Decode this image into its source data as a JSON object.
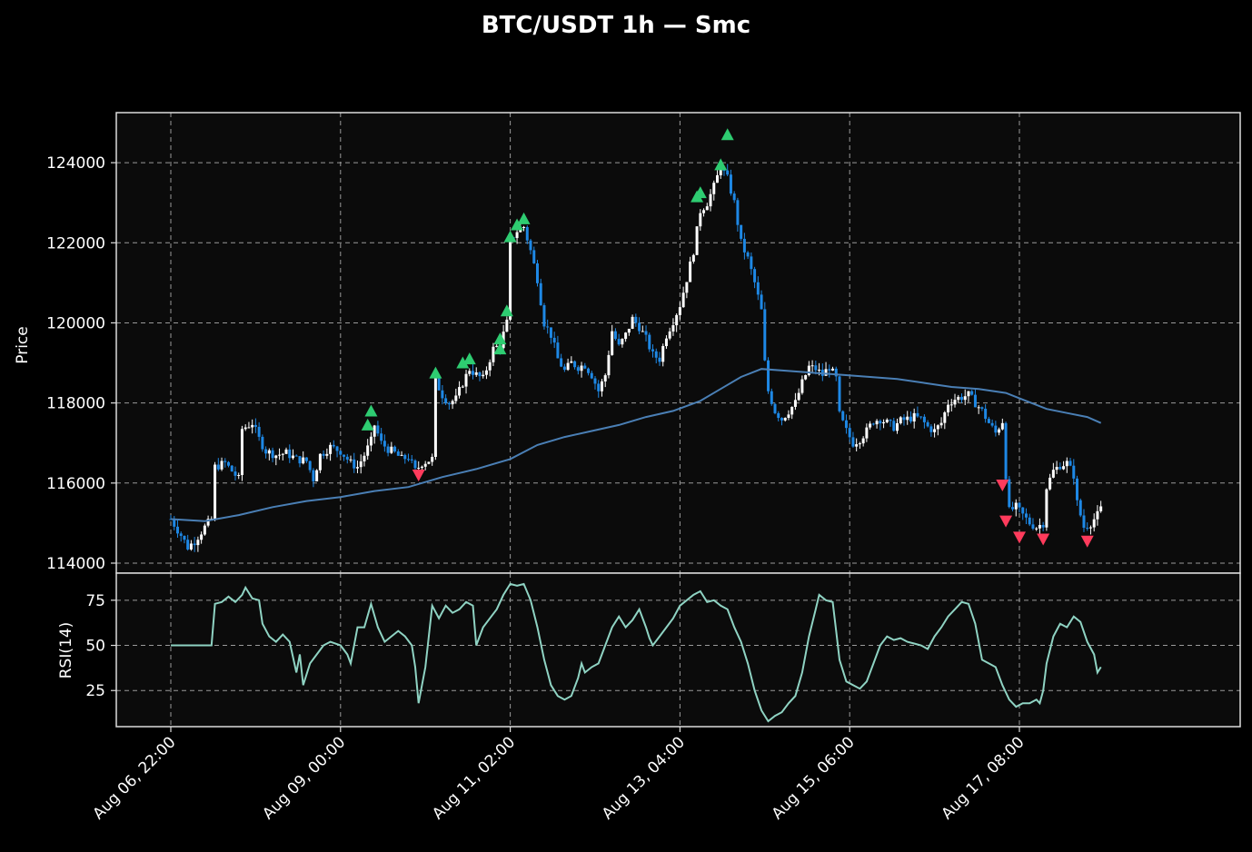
{
  "title": "BTC/USDT 1h — Smc",
  "colors": {
    "background": "#000000",
    "panel": "#0b0b0b",
    "frame": "#dddddd",
    "grid": "#9a9a9a",
    "text": "#ffffff",
    "candle_up": "#ffffff",
    "candle_down": "#1e88e5",
    "ma_line": "#4a7fb5",
    "rsi_line": "#8fd3c3",
    "buy_marker": "#2ecc71",
    "sell_marker": "#ff3b5c"
  },
  "chart_data": [
    {
      "type": "candlestick",
      "ylabel": "Price",
      "ylim": [
        113750,
        125250
      ],
      "yticks": [
        114000,
        116000,
        118000,
        120000,
        122000,
        124000
      ],
      "x_range_hours": [
        -1,
        265
      ],
      "xticks": [
        {
          "label": "Aug 06, 22:00",
          "hour": 0
        },
        {
          "label": "Aug 09, 00:00",
          "hour": 50
        },
        {
          "label": "Aug 11, 02:00",
          "hour": 100
        },
        {
          "label": "Aug 13, 04:00",
          "hour": 150
        },
        {
          "label": "Aug 15, 06:00",
          "hour": 200
        },
        {
          "label": "Aug 17, 08:00",
          "hour": 250
        }
      ],
      "grid": true,
      "close_anchors": [
        [
          0,
          115100
        ],
        [
          3,
          114700
        ],
        [
          5,
          114400
        ],
        [
          7,
          114550
        ],
        [
          10,
          114900
        ],
        [
          12,
          115100
        ],
        [
          13,
          116400
        ],
        [
          16,
          116500
        ],
        [
          18,
          116300
        ],
        [
          20,
          116100
        ],
        [
          21,
          117350
        ],
        [
          24,
          117500
        ],
        [
          26,
          117100
        ],
        [
          28,
          116800
        ],
        [
          31,
          116700
        ],
        [
          34,
          116750
        ],
        [
          37,
          116600
        ],
        [
          40,
          116550
        ],
        [
          42,
          116100
        ],
        [
          44,
          116700
        ],
        [
          47,
          116900
        ],
        [
          50,
          116800
        ],
        [
          53,
          116500
        ],
        [
          55,
          116400
        ],
        [
          57,
          116700
        ],
        [
          59,
          117050
        ],
        [
          60,
          117450
        ],
        [
          62,
          117000
        ],
        [
          64,
          116850
        ],
        [
          66,
          116750
        ],
        [
          68,
          116600
        ],
        [
          70,
          116650
        ],
        [
          72,
          116300
        ],
        [
          74,
          116500
        ],
        [
          77,
          116600
        ],
        [
          78,
          118550
        ],
        [
          80,
          118200
        ],
        [
          82,
          118000
        ],
        [
          84,
          118100
        ],
        [
          86,
          118500
        ],
        [
          88,
          118850
        ],
        [
          90,
          118700
        ],
        [
          92,
          118600
        ],
        [
          95,
          119350
        ],
        [
          97,
          119450
        ],
        [
          99,
          120000
        ],
        [
          100,
          122050
        ],
        [
          102,
          122300
        ],
        [
          104,
          122400
        ],
        [
          106,
          121800
        ],
        [
          108,
          121100
        ],
        [
          110,
          120000
        ],
        [
          112,
          119700
        ],
        [
          114,
          119100
        ],
        [
          116,
          118800
        ],
        [
          118,
          119000
        ],
        [
          120,
          118900
        ],
        [
          122,
          118950
        ],
        [
          124,
          118700
        ],
        [
          126,
          118300
        ],
        [
          128,
          118700
        ],
        [
          130,
          119800
        ],
        [
          132,
          119400
        ],
        [
          134,
          119700
        ],
        [
          136,
          120100
        ],
        [
          138,
          119900
        ],
        [
          140,
          119600
        ],
        [
          142,
          119200
        ],
        [
          144,
          119100
        ],
        [
          146,
          119700
        ],
        [
          148,
          120050
        ],
        [
          150,
          120450
        ],
        [
          152,
          121100
        ],
        [
          154,
          121800
        ],
        [
          156,
          122800
        ],
        [
          158,
          123000
        ],
        [
          160,
          123400
        ],
        [
          162,
          123900
        ],
        [
          164,
          123600
        ],
        [
          166,
          123000
        ],
        [
          168,
          122000
        ],
        [
          170,
          121600
        ],
        [
          172,
          121000
        ],
        [
          174,
          120300
        ],
        [
          175,
          119000
        ],
        [
          176,
          118300
        ],
        [
          178,
          117800
        ],
        [
          180,
          117600
        ],
        [
          182,
          117800
        ],
        [
          184,
          118000
        ],
        [
          186,
          118500
        ],
        [
          188,
          118900
        ],
        [
          190,
          118850
        ],
        [
          192,
          118700
        ],
        [
          194,
          118900
        ],
        [
          196,
          118600
        ],
        [
          197,
          117700
        ],
        [
          199,
          117300
        ],
        [
          201,
          117000
        ],
        [
          203,
          117100
        ],
        [
          205,
          117300
        ],
        [
          207,
          117550
        ],
        [
          209,
          117600
        ],
        [
          211,
          117500
        ],
        [
          213,
          117400
        ],
        [
          215,
          117550
        ],
        [
          217,
          117600
        ],
        [
          219,
          117650
        ],
        [
          221,
          117600
        ],
        [
          223,
          117400
        ],
        [
          225,
          117300
        ],
        [
          227,
          117500
        ],
        [
          229,
          118000
        ],
        [
          231,
          118100
        ],
        [
          233,
          118150
        ],
        [
          235,
          118200
        ],
        [
          237,
          118000
        ],
        [
          239,
          117800
        ],
        [
          241,
          117500
        ],
        [
          243,
          117250
        ],
        [
          245,
          117550
        ],
        [
          246,
          116200
        ],
        [
          247,
          115300
        ],
        [
          249,
          115400
        ],
        [
          251,
          115200
        ],
        [
          253,
          115000
        ],
        [
          255,
          114900
        ],
        [
          257,
          115000
        ],
        [
          258,
          115900
        ],
        [
          260,
          116300
        ],
        [
          262,
          116450
        ],
        [
          264,
          116500
        ],
        [
          266,
          116200
        ],
        [
          267,
          115500
        ],
        [
          269,
          114900
        ],
        [
          271,
          115000
        ],
        [
          273,
          115200
        ],
        [
          274,
          115350
        ]
      ],
      "ma_line": [
        [
          0,
          115100
        ],
        [
          10,
          115050
        ],
        [
          20,
          115200
        ],
        [
          30,
          115400
        ],
        [
          40,
          115550
        ],
        [
          50,
          115650
        ],
        [
          60,
          115800
        ],
        [
          70,
          115900
        ],
        [
          80,
          116150
        ],
        [
          90,
          116350
        ],
        [
          100,
          116600
        ],
        [
          108,
          116950
        ],
        [
          116,
          117150
        ],
        [
          124,
          117300
        ],
        [
          132,
          117450
        ],
        [
          140,
          117650
        ],
        [
          148,
          117800
        ],
        [
          156,
          118050
        ],
        [
          162,
          118350
        ],
        [
          168,
          118650
        ],
        [
          174,
          118850
        ],
        [
          182,
          118800
        ],
        [
          190,
          118750
        ],
        [
          198,
          118700
        ],
        [
          206,
          118650
        ],
        [
          214,
          118600
        ],
        [
          222,
          118500
        ],
        [
          230,
          118400
        ],
        [
          238,
          118350
        ],
        [
          246,
          118250
        ],
        [
          252,
          118050
        ],
        [
          258,
          117850
        ],
        [
          264,
          117750
        ],
        [
          270,
          117650
        ],
        [
          274,
          117500
        ]
      ],
      "buy_signals": [
        [
          58,
          117450
        ],
        [
          59,
          117800
        ],
        [
          78,
          118750
        ],
        [
          86,
          119000
        ],
        [
          88,
          119100
        ],
        [
          97,
          119350
        ],
        [
          97,
          119600
        ],
        [
          99,
          120300
        ],
        [
          100,
          122150
        ],
        [
          102,
          122450
        ],
        [
          104,
          122600
        ],
        [
          155,
          123150
        ],
        [
          156,
          123250
        ],
        [
          162,
          123950
        ],
        [
          164,
          124700
        ]
      ],
      "sell_signals": [
        [
          73,
          116200
        ],
        [
          245,
          115950
        ],
        [
          246,
          115050
        ],
        [
          250,
          114650
        ],
        [
          257,
          114600
        ],
        [
          270,
          114550
        ]
      ]
    },
    {
      "type": "line",
      "ylabel": "RSI(14)",
      "ylim": [
        5,
        90
      ],
      "yticks": [
        25,
        50,
        75
      ],
      "grid": true,
      "anchors": [
        [
          0,
          50
        ],
        [
          12,
          50
        ],
        [
          13,
          73
        ],
        [
          15,
          74
        ],
        [
          17,
          77
        ],
        [
          19,
          74
        ],
        [
          21,
          78
        ],
        [
          22,
          82
        ],
        [
          24,
          76
        ],
        [
          26,
          75
        ],
        [
          27,
          62
        ],
        [
          29,
          55
        ],
        [
          31,
          52
        ],
        [
          33,
          56
        ],
        [
          35,
          52
        ],
        [
          37,
          35
        ],
        [
          38,
          45
        ],
        [
          39,
          28
        ],
        [
          41,
          40
        ],
        [
          43,
          45
        ],
        [
          45,
          50
        ],
        [
          47,
          52
        ],
        [
          50,
          50
        ],
        [
          52,
          45
        ],
        [
          53,
          40
        ],
        [
          55,
          60
        ],
        [
          57,
          60
        ],
        [
          59,
          73
        ],
        [
          61,
          60
        ],
        [
          63,
          52
        ],
        [
          65,
          55
        ],
        [
          67,
          58
        ],
        [
          69,
          55
        ],
        [
          71,
          50
        ],
        [
          72,
          38
        ],
        [
          73,
          18
        ],
        [
          75,
          38
        ],
        [
          77,
          72
        ],
        [
          79,
          65
        ],
        [
          81,
          72
        ],
        [
          83,
          68
        ],
        [
          85,
          70
        ],
        [
          87,
          74
        ],
        [
          89,
          72
        ],
        [
          90,
          50
        ],
        [
          92,
          60
        ],
        [
          94,
          65
        ],
        [
          96,
          70
        ],
        [
          98,
          78
        ],
        [
          100,
          84
        ],
        [
          102,
          83
        ],
        [
          104,
          84
        ],
        [
          106,
          75
        ],
        [
          108,
          60
        ],
        [
          110,
          42
        ],
        [
          112,
          28
        ],
        [
          114,
          22
        ],
        [
          116,
          20
        ],
        [
          118,
          22
        ],
        [
          120,
          32
        ],
        [
          121,
          40
        ],
        [
          122,
          35
        ],
        [
          124,
          38
        ],
        [
          126,
          40
        ],
        [
          128,
          50
        ],
        [
          130,
          60
        ],
        [
          132,
          66
        ],
        [
          134,
          60
        ],
        [
          136,
          64
        ],
        [
          138,
          70
        ],
        [
          140,
          60
        ],
        [
          141,
          54
        ],
        [
          142,
          50
        ],
        [
          144,
          55
        ],
        [
          146,
          60
        ],
        [
          148,
          65
        ],
        [
          150,
          72
        ],
        [
          152,
          75
        ],
        [
          154,
          78
        ],
        [
          156,
          80
        ],
        [
          158,
          74
        ],
        [
          160,
          75
        ],
        [
          162,
          72
        ],
        [
          164,
          70
        ],
        [
          166,
          60
        ],
        [
          168,
          52
        ],
        [
          170,
          40
        ],
        [
          172,
          25
        ],
        [
          174,
          14
        ],
        [
          176,
          8
        ],
        [
          178,
          11
        ],
        [
          180,
          13
        ],
        [
          182,
          18
        ],
        [
          184,
          22
        ],
        [
          186,
          35
        ],
        [
          188,
          55
        ],
        [
          190,
          70
        ],
        [
          191,
          78
        ],
        [
          193,
          75
        ],
        [
          195,
          74
        ],
        [
          196,
          58
        ],
        [
          197,
          42
        ],
        [
          199,
          30
        ],
        [
          201,
          28
        ],
        [
          203,
          26
        ],
        [
          205,
          30
        ],
        [
          207,
          40
        ],
        [
          209,
          50
        ],
        [
          211,
          55
        ],
        [
          213,
          53
        ],
        [
          215,
          54
        ],
        [
          217,
          52
        ],
        [
          219,
          51
        ],
        [
          221,
          50
        ],
        [
          223,
          48
        ],
        [
          225,
          55
        ],
        [
          227,
          60
        ],
        [
          229,
          66
        ],
        [
          231,
          70
        ],
        [
          233,
          74
        ],
        [
          235,
          73
        ],
        [
          237,
          62
        ],
        [
          239,
          42
        ],
        [
          241,
          40
        ],
        [
          243,
          38
        ],
        [
          245,
          28
        ],
        [
          247,
          20
        ],
        [
          249,
          16
        ],
        [
          251,
          18
        ],
        [
          253,
          18
        ],
        [
          255,
          20
        ],
        [
          256,
          18
        ],
        [
          257,
          25
        ],
        [
          258,
          40
        ],
        [
          260,
          55
        ],
        [
          262,
          62
        ],
        [
          264,
          60
        ],
        [
          266,
          66
        ],
        [
          268,
          63
        ],
        [
          270,
          52
        ],
        [
          272,
          45
        ],
        [
          273,
          35
        ],
        [
          274,
          38
        ]
      ]
    }
  ]
}
